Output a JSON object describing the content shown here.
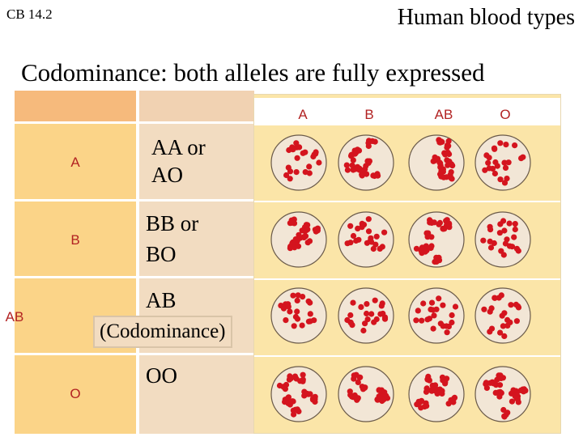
{
  "slide": {
    "corner_label": "CB 14.2",
    "title": "Human blood types",
    "subtitle": "Codominance: both alleles are fully expressed"
  },
  "antibody_columns": [
    "A",
    "B",
    "AB",
    "O"
  ],
  "rows": [
    {
      "blood_type": "A",
      "genotype_line1": "AA or",
      "genotype_line2": "AO",
      "clumped": [
        false,
        true,
        true,
        false
      ]
    },
    {
      "blood_type": "B",
      "genotype_line1": "BB or",
      "genotype_line2": "BO",
      "clumped": [
        true,
        false,
        true,
        false
      ]
    },
    {
      "blood_type": "AB",
      "genotype_line1": "AB",
      "genotype_line2": "",
      "clumped": [
        false,
        false,
        false,
        false
      ]
    },
    {
      "blood_type": "O",
      "genotype_line1": "OO",
      "genotype_line2": "",
      "clumped": [
        true,
        true,
        true,
        true
      ]
    }
  ],
  "annotation": "(Codominance)",
  "colors": {
    "phenotype_text": "#b22222",
    "blood_cell": "#d4141e",
    "dish": "#f2e6d6"
  }
}
